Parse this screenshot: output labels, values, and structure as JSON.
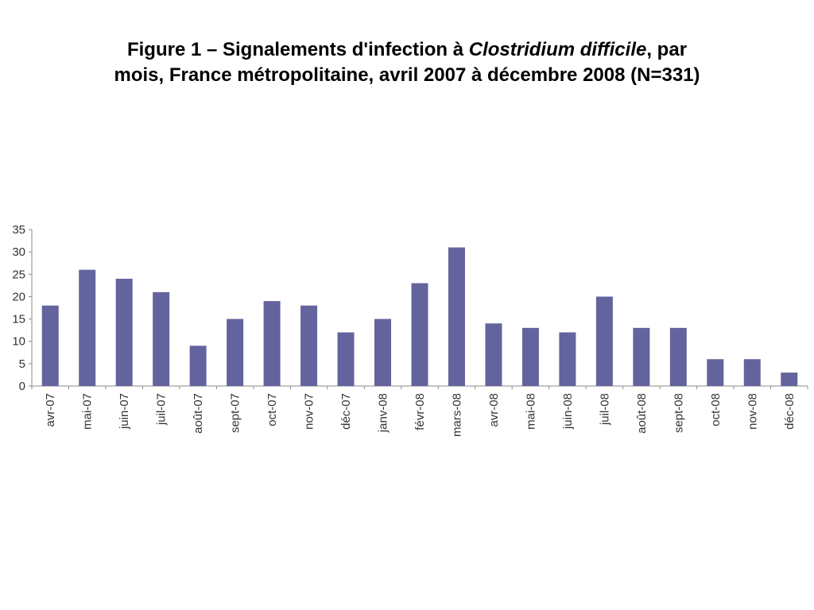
{
  "title": {
    "line1_prefix": "Figure 1 – Signalements d'infection à ",
    "line1_italic": "Clostridium difficile",
    "line1_suffix": ", par",
    "line2": "mois, France métropolitaine, avril 2007 à décembre 2008 (N=331)"
  },
  "colors": {
    "bar": "#63639d",
    "axis": "#8c8c8c",
    "text": "#333333"
  },
  "chart_data": {
    "type": "bar",
    "title": "Figure 1 – Signalements d'infection à Clostridium difficile, par mois, France métropolitaine, avril 2007 à décembre 2008 (N=331)",
    "xlabel": "",
    "ylabel": "",
    "ylim": [
      0,
      35
    ],
    "yticks": [
      0,
      5,
      10,
      15,
      20,
      25,
      30,
      35
    ],
    "grid": false,
    "legend": "none",
    "categories": [
      "avr-07",
      "mai-07",
      "juin-07",
      "juil-07",
      "août-07",
      "sept-07",
      "oct-07",
      "nov-07",
      "déc-07",
      "janv-08",
      "févr-08",
      "mars-08",
      "avr-08",
      "mai-08",
      "juin-08",
      "juil-08",
      "août-08",
      "sept-08",
      "oct-08",
      "nov-08",
      "déc-08"
    ],
    "values": [
      18,
      26,
      24,
      21,
      9,
      15,
      19,
      18,
      12,
      15,
      23,
      31,
      14,
      13,
      12,
      20,
      13,
      13,
      6,
      6,
      3
    ]
  }
}
